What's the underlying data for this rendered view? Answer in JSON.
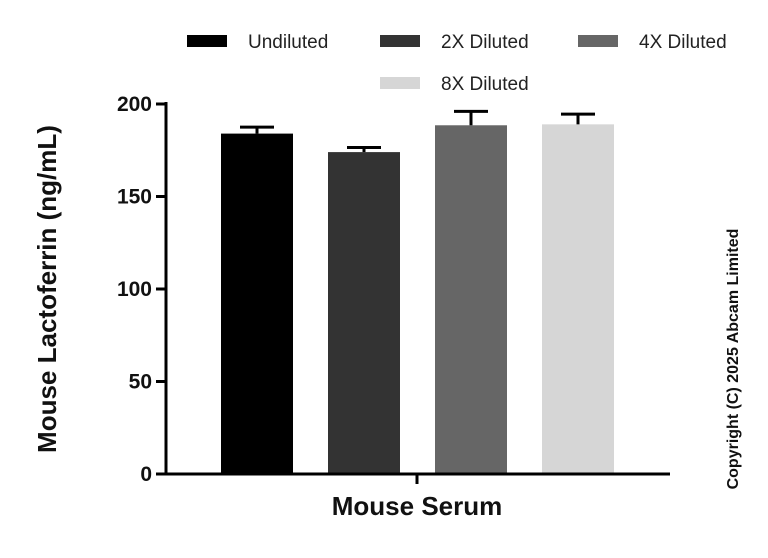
{
  "chart_data": {
    "type": "bar",
    "categories": [
      "Mouse Serum"
    ],
    "series": [
      {
        "name": "Undiluted",
        "values": [
          184
        ],
        "error": [
          3.5
        ],
        "color": "#000000"
      },
      {
        "name": "2X Diluted",
        "values": [
          174
        ],
        "error": [
          2.5
        ],
        "color": "#333333"
      },
      {
        "name": "4X Diluted",
        "values": [
          188.5
        ],
        "error": [
          7.5
        ],
        "color": "#666666"
      },
      {
        "name": "8X Diluted",
        "values": [
          189
        ],
        "error": [
          5.5
        ],
        "color": "#d6d6d6"
      }
    ],
    "title": "",
    "xlabel": "Mouse Serum",
    "ylabel": "Mouse Lactoferrin (ng/mL)",
    "ylim": [
      0,
      200
    ],
    "yticks": [
      0,
      50,
      100,
      150,
      200
    ],
    "grid": false,
    "legend_position": "top"
  },
  "copyright": "Copyright (C) 2025 Abcam Limited"
}
